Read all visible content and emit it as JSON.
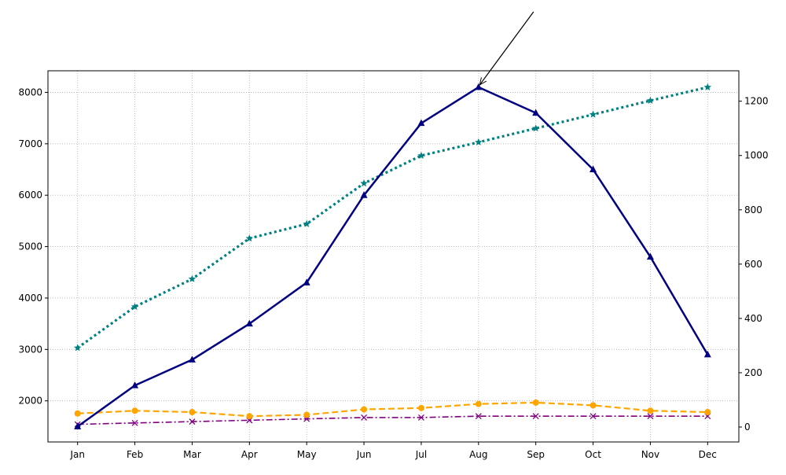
{
  "chart_data": {
    "type": "line",
    "categories": [
      "Jan",
      "Feb",
      "Mar",
      "Apr",
      "May",
      "Jun",
      "Jul",
      "Aug",
      "Sep",
      "Oct",
      "Nov",
      "Dec"
    ],
    "grid": true,
    "y_left": {
      "ylim": [
        1200,
        8420
      ],
      "ticks": [
        2000,
        3000,
        4000,
        5000,
        6000,
        7000,
        8000
      ]
    },
    "y_right": {
      "ylim": [
        -55,
        1312
      ],
      "ticks": [
        0,
        200,
        400,
        600,
        800,
        1000,
        1200
      ]
    },
    "series": [
      {
        "axis": "left",
        "color": "#000080",
        "style": "solid",
        "marker": "triangle",
        "values": [
          1500,
          2300,
          2800,
          3500,
          4300,
          6000,
          7400,
          8100,
          7600,
          6500,
          4800,
          2900
        ]
      },
      {
        "axis": "left",
        "color": "#008080",
        "style": "dotted",
        "marker": "star",
        "values": [
          3030,
          3830,
          4370,
          5160,
          5440,
          6230,
          6770,
          7030,
          7300,
          7570,
          7840,
          8100
        ]
      },
      {
        "axis": "right",
        "color": "#FFA500",
        "style": "dashed",
        "marker": "circle",
        "values": [
          50,
          60,
          55,
          40,
          45,
          65,
          70,
          85,
          90,
          80,
          60,
          55
        ]
      },
      {
        "axis": "right",
        "color": "#800080",
        "style": "dashdot",
        "marker": "x",
        "values": [
          10,
          15,
          20,
          25,
          30,
          35,
          35,
          40,
          40,
          40,
          40,
          40
        ]
      }
    ],
    "annotation": {
      "target_series": 0,
      "target_category": "Aug",
      "text": ""
    }
  }
}
